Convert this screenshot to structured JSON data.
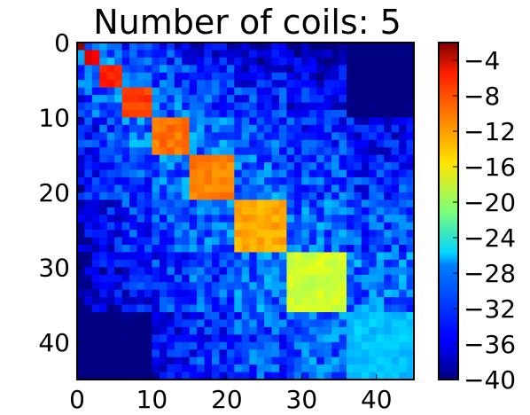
{
  "chart_data": {
    "type": "heatmap",
    "title": "Number of coils: 5",
    "xlabel": "",
    "ylabel": "",
    "rows": 45,
    "cols": 45,
    "x_ticks": [
      "0",
      "10",
      "20",
      "30",
      "40"
    ],
    "y_ticks": [
      "0",
      "10",
      "20",
      "30",
      "40"
    ],
    "colorbar": {
      "range": [
        -40,
        -2
      ],
      "ticks": [
        "−4",
        "−8",
        "−12",
        "−16",
        "−20",
        "−24",
        "−28",
        "−32",
        "−36",
        "−40"
      ],
      "tick_values": [
        -4,
        -8,
        -12,
        -16,
        -20,
        -24,
        -28,
        -32,
        -36,
        -40
      ],
      "colormap": "jet"
    },
    "diagonal_blocks": [
      {
        "start": 0,
        "end": 1,
        "value": -3
      },
      {
        "start": 1,
        "end": 3,
        "value": -6
      },
      {
        "start": 3,
        "end": 6,
        "value": -8
      },
      {
        "start": 6,
        "end": 10,
        "value": -9
      },
      {
        "start": 10,
        "end": 15,
        "value": -11
      },
      {
        "start": 15,
        "end": 21,
        "value": -11.5
      },
      {
        "start": 21,
        "end": 28,
        "value": -13
      },
      {
        "start": 28,
        "end": 36,
        "value": -18
      },
      {
        "start": 36,
        "end": 45,
        "value": -28
      }
    ],
    "off_diagonal_level": -30
  }
}
